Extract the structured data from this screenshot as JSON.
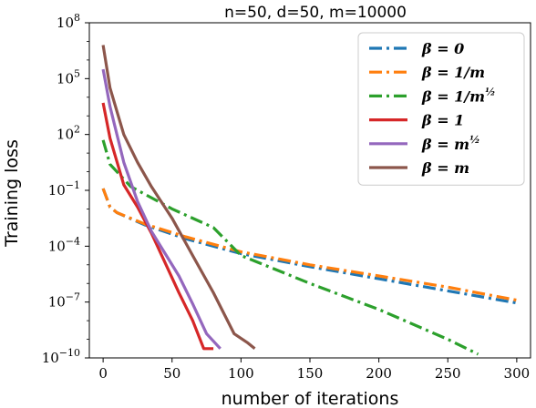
{
  "chart_data": {
    "type": "line",
    "title": "n=50, d=50, m=10000",
    "xlabel": "number of iterations",
    "ylabel": "Training loss",
    "yscale": "log",
    "xlim": [
      -10,
      310
    ],
    "ylim_exponent": [
      -10,
      8
    ],
    "xticks": [
      "0",
      "50",
      "100",
      "150",
      "200",
      "250",
      "300"
    ],
    "yticks": [
      {
        "base": "10",
        "exp": "−10",
        "value": -10
      },
      {
        "base": "10",
        "exp": "−7",
        "value": -7
      },
      {
        "base": "10",
        "exp": "−4",
        "value": -4
      },
      {
        "base": "10",
        "exp": "−1",
        "value": -1
      },
      {
        "base": "10",
        "exp": "2",
        "value": 2
      },
      {
        "base": "10",
        "exp": "5",
        "value": 5
      },
      {
        "base": "10",
        "exp": "8",
        "value": 8
      }
    ],
    "legend_position": "top-right",
    "grid": false,
    "series": [
      {
        "name": "β = 0",
        "color": "#1f77b4",
        "style": "dashdot",
        "x": [
          0,
          5,
          10,
          30,
          60,
          100,
          150,
          200,
          250,
          300
        ],
        "log10_y": [
          -0.9,
          -1.9,
          -2.2,
          -2.85,
          -3.6,
          -4.4,
          -5.1,
          -5.75,
          -6.4,
          -7.05
        ]
      },
      {
        "name": "β = 1/m",
        "color": "#ff7f0e",
        "style": "dashdot",
        "x": [
          0,
          5,
          10,
          30,
          60,
          100,
          150,
          200,
          250,
          300
        ],
        "log10_y": [
          -0.9,
          -1.9,
          -2.2,
          -2.8,
          -3.5,
          -4.3,
          -5.0,
          -5.6,
          -6.2,
          -6.9
        ]
      },
      {
        "name": "β = 1/m^½",
        "color": "#2ca02c",
        "style": "dashdot",
        "x": [
          0,
          5,
          20,
          50,
          80,
          100,
          150,
          200,
          250,
          272
        ],
        "log10_y": [
          1.7,
          0.4,
          -0.8,
          -2.0,
          -3.0,
          -4.5,
          -6.0,
          -7.4,
          -9.0,
          -9.8
        ]
      },
      {
        "name": "β = 1",
        "color": "#d62728",
        "style": "solid",
        "x": [
          0,
          5,
          15,
          25,
          35,
          45,
          55,
          65,
          73,
          80
        ],
        "log10_y": [
          3.7,
          1.8,
          -0.7,
          -1.9,
          -3.3,
          -4.9,
          -6.5,
          -8.0,
          -9.5,
          -9.5
        ]
      },
      {
        "name": "β = m^½",
        "color": "#9467bd",
        "style": "solid",
        "x": [
          0,
          5,
          15,
          25,
          35,
          45,
          55,
          65,
          75,
          85
        ],
        "log10_y": [
          5.5,
          3.5,
          0.5,
          -1.6,
          -3.2,
          -4.4,
          -5.6,
          -7.1,
          -8.7,
          -9.5
        ]
      },
      {
        "name": "β = m",
        "color": "#8c564b",
        "style": "solid",
        "x": [
          0,
          5,
          15,
          25,
          35,
          50,
          65,
          80,
          95,
          105,
          110
        ],
        "log10_y": [
          6.8,
          4.5,
          2.0,
          0.5,
          -0.8,
          -2.5,
          -4.5,
          -6.5,
          -8.7,
          -9.2,
          -9.5
        ]
      }
    ],
    "legend": [
      {
        "label_main": "β = 0",
        "label_sup": ""
      },
      {
        "label_main": "β = 1/m",
        "label_sup": ""
      },
      {
        "label_main": "β = 1/m",
        "label_sup": "½"
      },
      {
        "label_main": "β = 1",
        "label_sup": ""
      },
      {
        "label_main": "β = m",
        "label_sup": "½"
      },
      {
        "label_main": "β = m",
        "label_sup": ""
      }
    ]
  }
}
